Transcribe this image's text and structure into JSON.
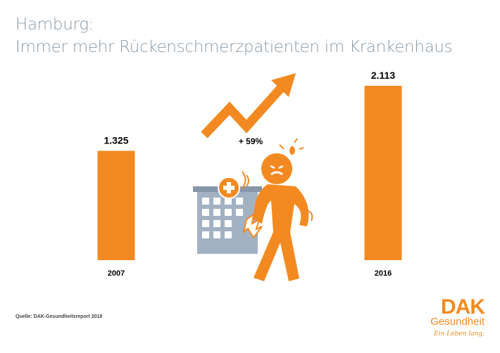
{
  "title": {
    "line1": "Hamburg:",
    "line2": "Immer mehr Rückenschmerzpatienten im Krankenhaus"
  },
  "chart_data": {
    "type": "bar",
    "categories": [
      "2007",
      "2016"
    ],
    "values": [
      1325,
      2113
    ],
    "value_labels": [
      "1.325",
      "2.113"
    ],
    "change_label": "+ 59%",
    "bar_color": "#f28a21"
  },
  "source": "Quelle: DAK-Gesundheitsreport 2018",
  "logo": {
    "brand": "DAK",
    "sub": "Gesundheit",
    "slogan": "Ein Leben lang."
  },
  "colors": {
    "accent": "#f28a21",
    "title": "#8a9aa6",
    "building": "#a3b2c3"
  },
  "icons": [
    "trend-arrow-icon",
    "hospital-building-icon",
    "person-back-pain-icon"
  ]
}
